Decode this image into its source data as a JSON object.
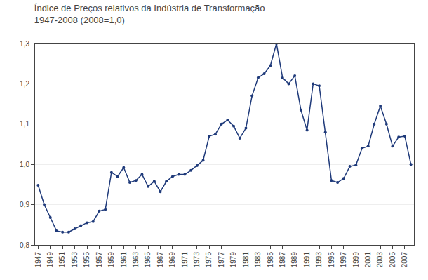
{
  "chart_data": {
    "type": "line",
    "title": "Índice de Preços relativos da Indústria de Transformação",
    "subtitle": "1947-2008 (2008=1,0)",
    "x": [
      1947,
      1948,
      1949,
      1950,
      1951,
      1952,
      1953,
      1954,
      1955,
      1956,
      1957,
      1958,
      1959,
      1960,
      1961,
      1962,
      1963,
      1964,
      1965,
      1966,
      1967,
      1968,
      1969,
      1970,
      1971,
      1972,
      1973,
      1974,
      1975,
      1976,
      1977,
      1978,
      1979,
      1980,
      1981,
      1982,
      1983,
      1984,
      1985,
      1986,
      1987,
      1988,
      1989,
      1990,
      1991,
      1992,
      1993,
      1994,
      1995,
      1996,
      1997,
      1998,
      1999,
      2000,
      2001,
      2002,
      2003,
      2004,
      2005,
      2006,
      2007,
      2008
    ],
    "values": [
      0.948,
      0.9,
      0.868,
      0.835,
      0.832,
      0.832,
      0.84,
      0.848,
      0.855,
      0.858,
      0.884,
      0.888,
      0.98,
      0.97,
      0.992,
      0.955,
      0.96,
      0.975,
      0.945,
      0.958,
      0.932,
      0.958,
      0.97,
      0.975,
      0.975,
      0.985,
      0.997,
      1.01,
      1.07,
      1.075,
      1.1,
      1.11,
      1.095,
      1.065,
      1.09,
      1.17,
      1.215,
      1.225,
      1.245,
      1.3,
      1.215,
      1.2,
      1.22,
      1.135,
      1.085,
      1.2,
      1.195,
      1.08,
      0.96,
      0.955,
      0.965,
      0.995,
      0.998,
      1.04,
      1.045,
      1.1,
      1.145,
      1.1,
      1.045,
      1.068,
      1.07,
      1.0
    ],
    "color": "#1f3a7a",
    "marker": "circle",
    "xlim": [
      1946.5,
      2008.5
    ],
    "xticks": [
      1947,
      1949,
      1951,
      1953,
      1955,
      1957,
      1959,
      1961,
      1963,
      1965,
      1967,
      1969,
      1971,
      1973,
      1975,
      1977,
      1979,
      1981,
      1983,
      1985,
      1987,
      1989,
      1991,
      1993,
      1995,
      1997,
      1999,
      2001,
      2003,
      2005,
      2007
    ],
    "ylim": [
      0.8,
      1.3
    ],
    "yticks": [
      {
        "value": 0.8,
        "label": "0,8"
      },
      {
        "value": 0.9,
        "label": "0,9"
      },
      {
        "value": 1.0,
        "label": "1,0"
      },
      {
        "value": 1.1,
        "label": "1,1"
      },
      {
        "value": 1.2,
        "label": "1,2"
      },
      {
        "value": 1.3,
        "label": "1,3"
      }
    ],
    "grid": true
  }
}
